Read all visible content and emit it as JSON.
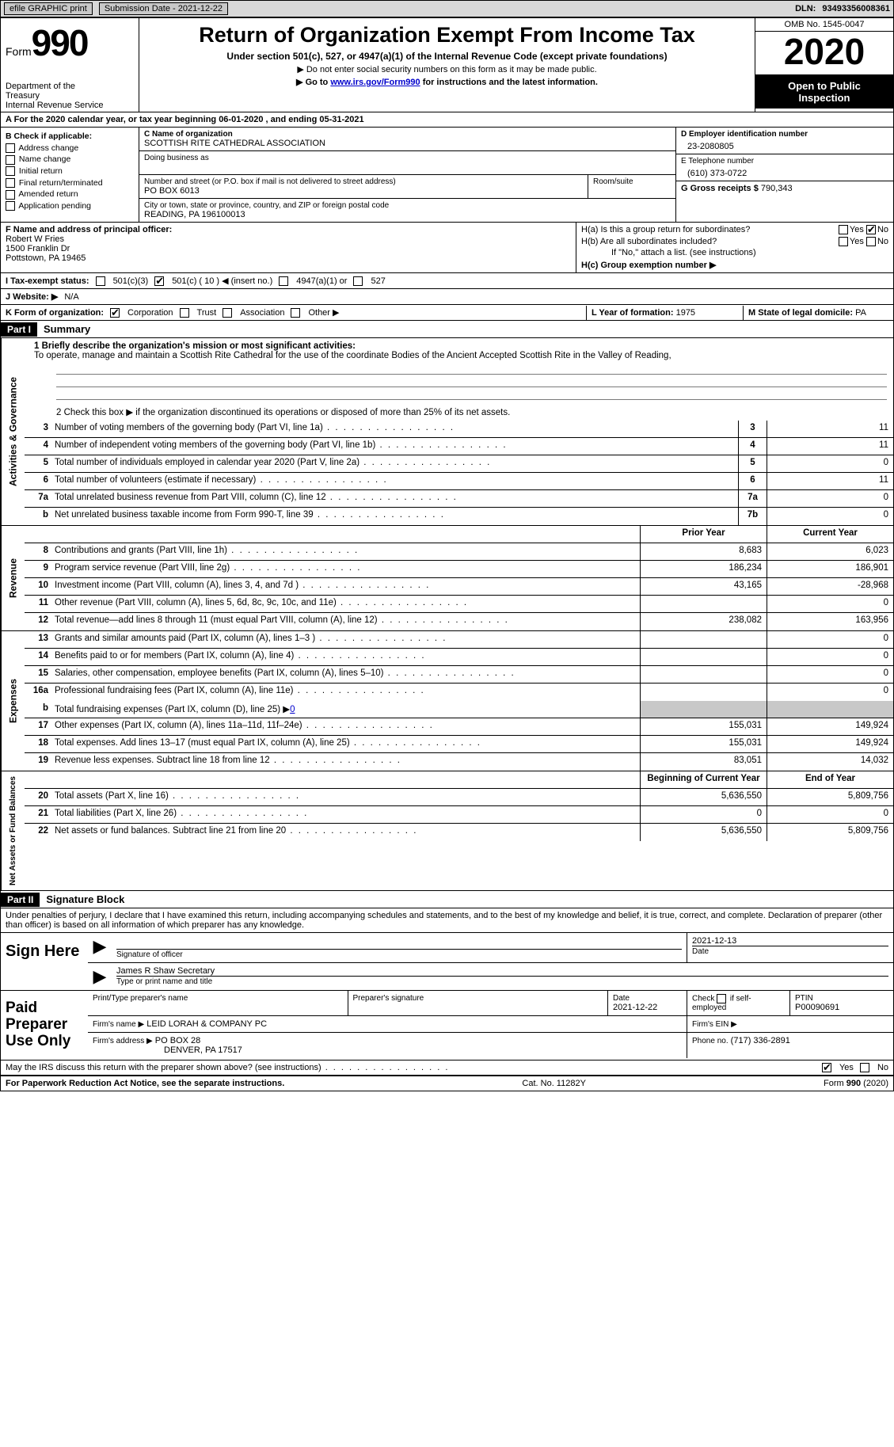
{
  "topbar": {
    "efile": "efile GRAPHIC print",
    "submission": "Submission Date - 2021-12-22",
    "dln_label": "DLN:",
    "dln": "93493356008361"
  },
  "header": {
    "form_word": "Form",
    "form_num": "990",
    "dept1": "Department of the",
    "dept2": "Treasury",
    "dept3": "Internal Revenue Service",
    "title": "Return of Organization Exempt From Income Tax",
    "sub": "Under section 501(c), 527, or 4947(a)(1) of the Internal Revenue Code (except private foundations)",
    "note1": "▶ Do not enter social security numbers on this form as it may be made public.",
    "note2_pre": "▶ Go to ",
    "note2_link": "www.irs.gov/Form990",
    "note2_post": " for instructions and the latest information.",
    "omb": "OMB No. 1545-0047",
    "year": "2020",
    "open1": "Open to Public",
    "open2": "Inspection"
  },
  "rowA": "A For the 2020 calendar year, or tax year beginning 06-01-2020    , and ending 05-31-2021",
  "boxB": {
    "title": "B Check if applicable:",
    "items": [
      "Address change",
      "Name change",
      "Initial return",
      "Final return/terminated",
      "Amended return",
      "Application pending"
    ]
  },
  "boxC": {
    "label_name": "C Name of organization",
    "org_name": "SCOTTISH RITE CATHEDRAL ASSOCIATION",
    "dba_label": "Doing business as",
    "addr_label": "Number and street (or P.O. box if mail is not delivered to street address)",
    "addr": "PO BOX 6013",
    "room_label": "Room/suite",
    "city_label": "City or town, state or province, country, and ZIP or foreign postal code",
    "city": "READING, PA  196100013"
  },
  "boxD": {
    "label": "D Employer identification number",
    "value": "23-2080805"
  },
  "boxE": {
    "label": "E Telephone number",
    "value": "(610) 373-0722"
  },
  "boxG": {
    "label": "G Gross receipts $",
    "value": "790,343"
  },
  "boxF": {
    "label": "F  Name and address of principal officer:",
    "l1": "Robert W Fries",
    "l2": "1500 Franklin Dr",
    "l3": "Pottstown, PA  19465"
  },
  "boxH": {
    "ha": "H(a)  Is this a group return for subordinates?",
    "hb": "H(b)  Are all subordinates included?",
    "hb_note": "If \"No,\" attach a list. (see instructions)",
    "hc": "H(c)  Group exemption number ▶",
    "yes": "Yes",
    "no": "No"
  },
  "rowI": {
    "label": "I  Tax-exempt status:",
    "c3": "501(c)(3)",
    "c": "501(c) ( 10 ) ◀ (insert no.)",
    "a1": "4947(a)(1) or",
    "s527": "527"
  },
  "rowJ": {
    "label": "J  Website: ▶",
    "value": "N/A"
  },
  "rowK": {
    "label": "K Form of organization:",
    "corp": "Corporation",
    "trust": "Trust",
    "assoc": "Association",
    "other": "Other ▶"
  },
  "rowL": {
    "label": "L Year of formation:",
    "value": "1975"
  },
  "rowM": {
    "label": "M State of legal domicile:",
    "value": "PA"
  },
  "parts": {
    "p1": "Part I",
    "p1_title": "Summary",
    "p2": "Part II",
    "p2_title": "Signature Block"
  },
  "mission": {
    "label": "1  Briefly describe the organization's mission or most significant activities:",
    "text": "To operate, manage and maintain a Scottish Rite Cathedral for the use of the coordinate Bodies of the Ancient Accepted Scottish Rite in the Valley of Reading,"
  },
  "line2": "2    Check this box ▶        if the organization discontinued its operations or disposed of more than 25% of its net assets.",
  "side": {
    "gov": "Activities & Governance",
    "rev": "Revenue",
    "exp": "Expenses",
    "net": "Net Assets or Fund Balances"
  },
  "col_hdr": {
    "prior": "Prior Year",
    "current": "Current Year",
    "boy": "Beginning of Current Year",
    "eoy": "End of Year"
  },
  "gov_lines": [
    {
      "n": "3",
      "label": "Number of voting members of the governing body (Part VI, line 1a)",
      "box": "3",
      "val": "11"
    },
    {
      "n": "4",
      "label": "Number of independent voting members of the governing body (Part VI, line 1b)",
      "box": "4",
      "val": "11"
    },
    {
      "n": "5",
      "label": "Total number of individuals employed in calendar year 2020 (Part V, line 2a)",
      "box": "5",
      "val": "0"
    },
    {
      "n": "6",
      "label": "Total number of volunteers (estimate if necessary)",
      "box": "6",
      "val": "11"
    },
    {
      "n": "7a",
      "label": "Total unrelated business revenue from Part VIII, column (C), line 12",
      "box": "7a",
      "val": "0"
    },
    {
      "n": "b",
      "label": "Net unrelated business taxable income from Form 990-T, line 39",
      "box": "7b",
      "val": "0"
    }
  ],
  "rev_lines": [
    {
      "n": "8",
      "label": "Contributions and grants (Part VIII, line 1h)",
      "p": "8,683",
      "c": "6,023"
    },
    {
      "n": "9",
      "label": "Program service revenue (Part VIII, line 2g)",
      "p": "186,234",
      "c": "186,901"
    },
    {
      "n": "10",
      "label": "Investment income (Part VIII, column (A), lines 3, 4, and 7d )",
      "p": "43,165",
      "c": "-28,968"
    },
    {
      "n": "11",
      "label": "Other revenue (Part VIII, column (A), lines 5, 6d, 8c, 9c, 10c, and 11e)",
      "p": "",
      "c": "0"
    },
    {
      "n": "12",
      "label": "Total revenue—add lines 8 through 11 (must equal Part VIII, column (A), line 12)",
      "p": "238,082",
      "c": "163,956"
    }
  ],
  "exp_lines": [
    {
      "n": "13",
      "label": "Grants and similar amounts paid (Part IX, column (A), lines 1–3 )",
      "p": "",
      "c": "0"
    },
    {
      "n": "14",
      "label": "Benefits paid to or for members (Part IX, column (A), line 4)",
      "p": "",
      "c": "0"
    },
    {
      "n": "15",
      "label": "Salaries, other compensation, employee benefits (Part IX, column (A), lines 5–10)",
      "p": "",
      "c": "0"
    },
    {
      "n": "16a",
      "label": "Professional fundraising fees (Part IX, column (A), line 11e)",
      "p": "",
      "c": "0"
    }
  ],
  "exp_b": {
    "n": "b",
    "label": "Total fundraising expenses (Part IX, column (D), line 25) ▶",
    "val": "0"
  },
  "exp_lines2": [
    {
      "n": "17",
      "label": "Other expenses (Part IX, column (A), lines 11a–11d, 11f–24e)",
      "p": "155,031",
      "c": "149,924"
    },
    {
      "n": "18",
      "label": "Total expenses. Add lines 13–17 (must equal Part IX, column (A), line 25)",
      "p": "155,031",
      "c": "149,924"
    },
    {
      "n": "19",
      "label": "Revenue less expenses. Subtract line 18 from line 12",
      "p": "83,051",
      "c": "14,032"
    }
  ],
  "net_lines": [
    {
      "n": "20",
      "label": "Total assets (Part X, line 16)",
      "p": "5,636,550",
      "c": "5,809,756"
    },
    {
      "n": "21",
      "label": "Total liabilities (Part X, line 26)",
      "p": "0",
      "c": "0"
    },
    {
      "n": "22",
      "label": "Net assets or fund balances. Subtract line 21 from line 20",
      "p": "5,636,550",
      "c": "5,809,756"
    }
  ],
  "penalty": "Under penalties of perjury, I declare that I have examined this return, including accompanying schedules and statements, and to the best of my knowledge and belief, it is true, correct, and complete. Declaration of preparer (other than officer) is based on all information of which preparer has any knowledge.",
  "sign": {
    "here": "Sign Here",
    "sig_of": "Signature of officer",
    "date": "Date",
    "date_val": "2021-12-13",
    "name": "James R Shaw  Secretary",
    "type": "Type or print name and title"
  },
  "paid": {
    "title": "Paid Preparer Use Only",
    "pt_label": "Print/Type preparer's name",
    "sig_label": "Preparer's signature",
    "date_label": "Date",
    "date_val": "2021-12-22",
    "check_label": "Check          if self-employed",
    "ptin_label": "PTIN",
    "ptin": "P00090691",
    "firm_name_label": "Firm's name     ▶",
    "firm_name": "LEID LORAH & COMPANY PC",
    "firm_ein_label": "Firm's EIN ▶",
    "firm_addr_label": "Firm's address ▶",
    "firm_addr1": "PO BOX 28",
    "firm_addr2": "DENVER, PA  17517",
    "phone_label": "Phone no.",
    "phone": "(717) 336-2891"
  },
  "discuss": "May the IRS discuss this return with the preparer shown above? (see instructions)",
  "footer": {
    "left": "For Paperwork Reduction Act Notice, see the separate instructions.",
    "mid": "Cat. No. 11282Y",
    "right_pre": "Form ",
    "right_num": "990",
    "right_post": " (2020)"
  }
}
